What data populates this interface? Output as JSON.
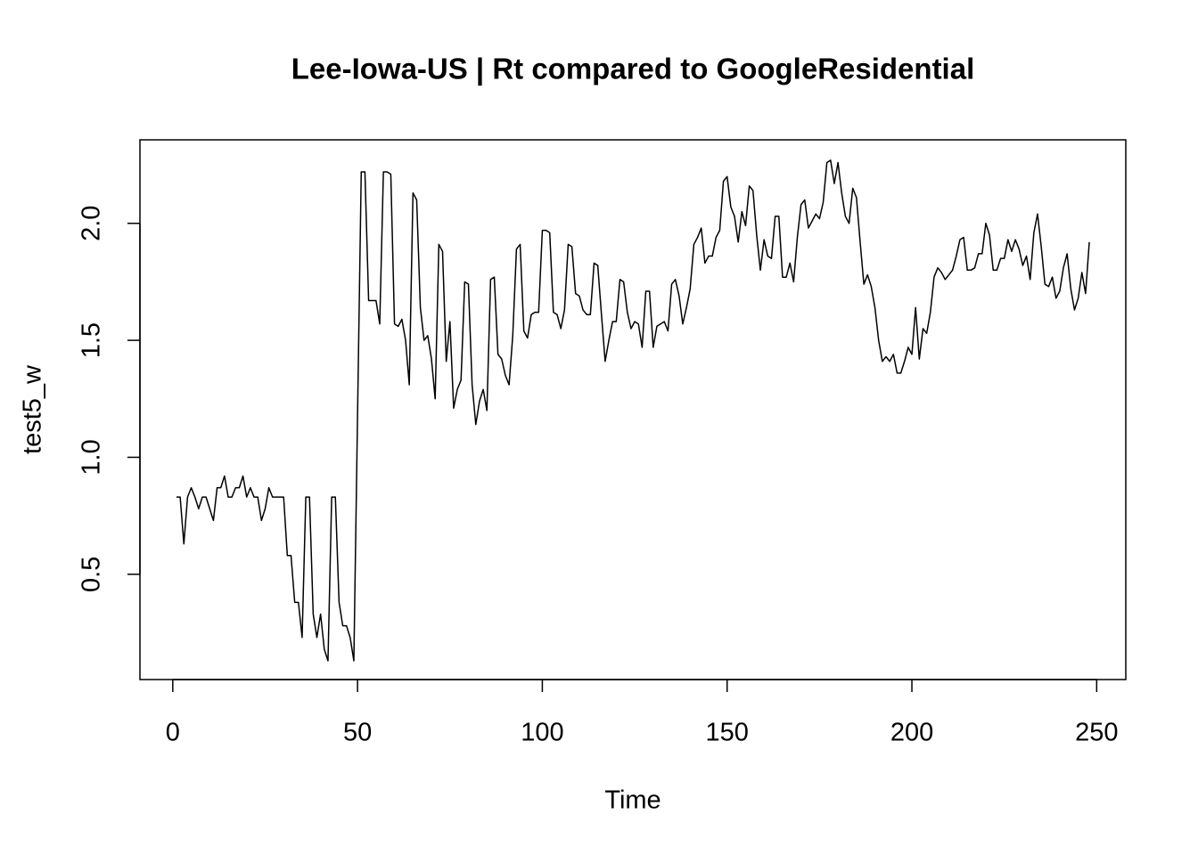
{
  "chart_data": {
    "type": "line",
    "title": "Lee-Iowa-US | Rt compared to GoogleResidential",
    "x_label": "Time",
    "y_label": "test5_w",
    "color": "#000000",
    "xlim": [
      -8.88,
      257.88
    ],
    "ylim": [
      0.05,
      2.357
    ],
    "xticks": [
      0,
      50,
      100,
      150,
      200,
      250
    ],
    "yticks": [
      0.5,
      {
        "value": 1,
        "label": "1.0"
      },
      1.5,
      {
        "value": 2,
        "label": "2.0"
      }
    ],
    "x": [
      1,
      2,
      3,
      4,
      5,
      6,
      7,
      8,
      9,
      10,
      11,
      12,
      13,
      14,
      15,
      16,
      17,
      18,
      19,
      20,
      21,
      22,
      23,
      24,
      25,
      26,
      27,
      28,
      29,
      30,
      31,
      32,
      33,
      34,
      35,
      36,
      37,
      38,
      39,
      40,
      41,
      42,
      43,
      44,
      45,
      46,
      47,
      48,
      49,
      50,
      51,
      52,
      53,
      54,
      55,
      56,
      57,
      58,
      59,
      60,
      61,
      62,
      63,
      64,
      65,
      66,
      67,
      68,
      69,
      70,
      71,
      72,
      73,
      74,
      75,
      76,
      77,
      78,
      79,
      80,
      81,
      82,
      83,
      84,
      85,
      86,
      87,
      88,
      89,
      90,
      91,
      92,
      93,
      94,
      95,
      96,
      97,
      98,
      99,
      100,
      101,
      102,
      103,
      104,
      105,
      106,
      107,
      108,
      109,
      110,
      111,
      112,
      113,
      114,
      115,
      116,
      117,
      118,
      119,
      120,
      121,
      122,
      123,
      124,
      125,
      126,
      127,
      128,
      129,
      130,
      131,
      132,
      133,
      134,
      135,
      136,
      137,
      138,
      139,
      140,
      141,
      142,
      143,
      144,
      145,
      146,
      147,
      148,
      149,
      150,
      151,
      152,
      153,
      154,
      155,
      156,
      157,
      158,
      159,
      160,
      161,
      162,
      163,
      164,
      165,
      166,
      167,
      168,
      169,
      170,
      171,
      172,
      173,
      174,
      175,
      176,
      177,
      178,
      179,
      180,
      181,
      182,
      183,
      184,
      185,
      186,
      187,
      188,
      189,
      190,
      191,
      192,
      193,
      194,
      195,
      196,
      197,
      198,
      199,
      200,
      201,
      202,
      203,
      204,
      205,
      206,
      207,
      208,
      209,
      210,
      211,
      212,
      213,
      214,
      215,
      216,
      217,
      218,
      219,
      220,
      221,
      222,
      223,
      224,
      225,
      226,
      227,
      228,
      229,
      230,
      231,
      232,
      233,
      234,
      235,
      236,
      237,
      238,
      239,
      240,
      241,
      242,
      243,
      244,
      245,
      246,
      247,
      248
    ],
    "values": [
      0.83,
      0.83,
      0.63,
      0.83,
      0.87,
      0.83,
      0.78,
      0.83,
      0.83,
      0.78,
      0.73,
      0.87,
      0.87,
      0.92,
      0.83,
      0.83,
      0.87,
      0.87,
      0.92,
      0.83,
      0.87,
      0.83,
      0.83,
      0.73,
      0.78,
      0.87,
      0.83,
      0.83,
      0.83,
      0.83,
      0.58,
      0.58,
      0.38,
      0.38,
      0.23,
      0.83,
      0.83,
      0.33,
      0.23,
      0.33,
      0.18,
      0.13,
      0.83,
      0.83,
      0.38,
      0.28,
      0.28,
      0.23,
      0.13,
      1.18,
      2.22,
      2.22,
      1.67,
      1.67,
      1.67,
      1.57,
      2.22,
      2.22,
      2.21,
      1.57,
      1.56,
      1.59,
      1.5,
      1.31,
      2.13,
      2.1,
      1.64,
      1.5,
      1.52,
      1.42,
      1.25,
      1.91,
      1.88,
      1.41,
      1.58,
      1.21,
      1.29,
      1.33,
      1.75,
      1.74,
      1.31,
      1.14,
      1.24,
      1.29,
      1.2,
      1.76,
      1.77,
      1.44,
      1.42,
      1.35,
      1.31,
      1.52,
      1.89,
      1.91,
      1.54,
      1.51,
      1.61,
      1.62,
      1.62,
      1.97,
      1.97,
      1.96,
      1.62,
      1.61,
      1.55,
      1.63,
      1.91,
      1.9,
      1.7,
      1.69,
      1.63,
      1.61,
      1.61,
      1.83,
      1.82,
      1.61,
      1.41,
      1.5,
      1.58,
      1.58,
      1.76,
      1.75,
      1.62,
      1.55,
      1.58,
      1.57,
      1.47,
      1.71,
      1.71,
      1.47,
      1.56,
      1.57,
      1.58,
      1.54,
      1.74,
      1.76,
      1.69,
      1.57,
      1.64,
      1.72,
      1.91,
      1.94,
      1.98,
      1.83,
      1.86,
      1.86,
      1.94,
      1.97,
      2.18,
      2.2,
      2.07,
      2.03,
      1.92,
      2.05,
      1.99,
      2.16,
      2.14,
      1.95,
      1.8,
      1.93,
      1.86,
      1.85,
      2.03,
      2.03,
      1.77,
      1.77,
      1.83,
      1.75,
      1.94,
      2.08,
      2.1,
      1.98,
      2.01,
      2.04,
      2.02,
      2.09,
      2.26,
      2.27,
      2.17,
      2.26,
      2.13,
      2.03,
      2.0,
      2.15,
      2.11,
      1.92,
      1.74,
      1.78,
      1.73,
      1.64,
      1.5,
      1.41,
      1.43,
      1.41,
      1.44,
      1.36,
      1.36,
      1.41,
      1.47,
      1.44,
      1.64,
      1.42,
      1.55,
      1.53,
      1.62,
      1.77,
      1.81,
      1.79,
      1.76,
      1.78,
      1.8,
      1.86,
      1.93,
      1.94,
      1.8,
      1.8,
      1.81,
      1.87,
      1.87,
      2.0,
      1.95,
      1.8,
      1.8,
      1.85,
      1.85,
      1.93,
      1.88,
      1.93,
      1.89,
      1.82,
      1.86,
      1.76,
      1.96,
      2.04,
      1.9,
      1.74,
      1.73,
      1.77,
      1.68,
      1.71,
      1.81,
      1.87,
      1.72,
      1.63,
      1.68,
      1.79,
      1.7,
      1.92
    ]
  }
}
